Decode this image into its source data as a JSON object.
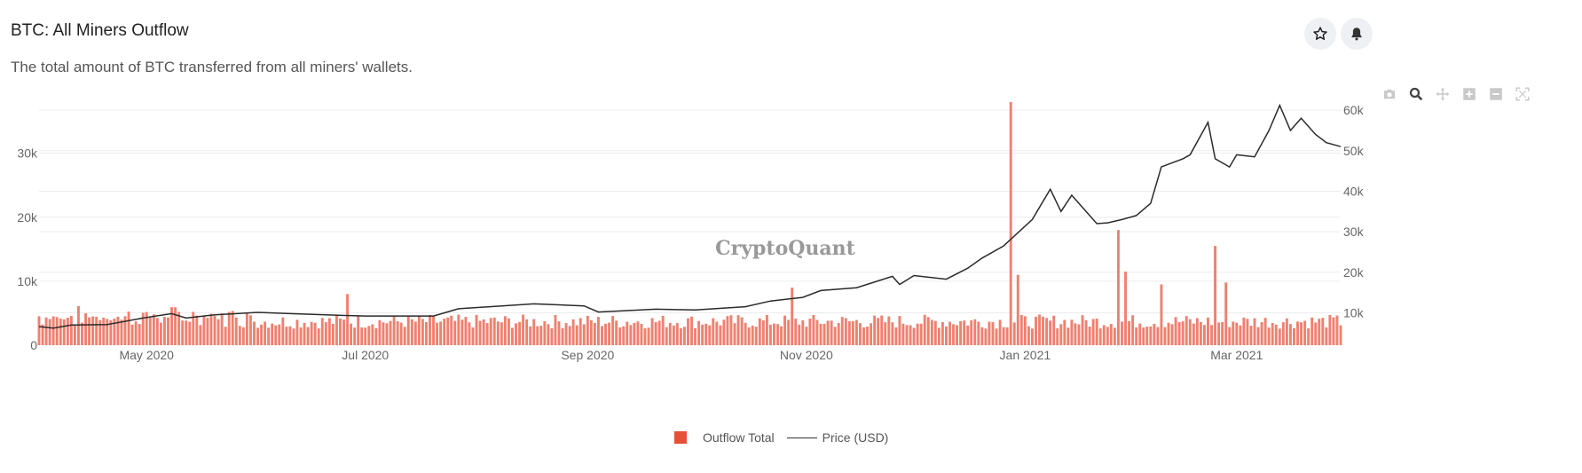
{
  "header": {
    "title": "BTC: All Miners Outflow",
    "subtitle": "The total amount of BTC transferred from all miners' wallets."
  },
  "actions": {
    "favorite_icon": "star-icon",
    "alert_icon": "bell-icon"
  },
  "modebar": [
    "camera-icon",
    "zoom-icon",
    "pan-icon",
    "zoom-in-icon",
    "zoom-out-icon",
    "reset-axes-icon"
  ],
  "watermark": "CryptoQuant",
  "colors": {
    "bar": "#f0806e",
    "bar_legend": "#e8503a",
    "line": "#2b2b2b",
    "grid": "#ececec",
    "axis_text": "#666666"
  },
  "chart_data": {
    "type": "bar+line",
    "x_start": "2020-04-01",
    "x_end": "2021-03-30",
    "x_tick_labels": [
      "May 2020",
      "Jul 2020",
      "Sep 2020",
      "Nov 2020",
      "Jan 2021",
      "Mar 2021"
    ],
    "x_tick_dates": [
      "2020-05-01",
      "2020-07-01",
      "2020-09-01",
      "2020-11-01",
      "2021-01-01",
      "2021-03-01"
    ],
    "y_left": {
      "range": [
        0,
        38000
      ],
      "ticks": [
        0,
        10000,
        20000,
        30000
      ],
      "tick_labels": [
        "0",
        "10k",
        "20k",
        "30k"
      ]
    },
    "y_right": {
      "range": [
        2000,
        62000
      ],
      "ticks": [
        10000,
        20000,
        30000,
        40000,
        50000,
        60000
      ],
      "tick_labels": [
        "10k",
        "20k",
        "30k",
        "40k",
        "50k",
        "60k"
      ]
    },
    "grid": true,
    "legend_position": "bottom-center",
    "series": [
      {
        "name": "Outflow Total",
        "type": "bar",
        "axis": "left",
        "baseline": 2600,
        "amplitude": 2200,
        "spikes": [
          {
            "date": "2020-06-26",
            "value": 8000
          },
          {
            "date": "2020-10-28",
            "value": 9000
          },
          {
            "date": "2020-12-28",
            "value": 38000
          },
          {
            "date": "2020-12-30",
            "value": 11000
          },
          {
            "date": "2021-01-27",
            "value": 18000
          },
          {
            "date": "2021-01-29",
            "value": 11500
          },
          {
            "date": "2021-02-08",
            "value": 9500
          },
          {
            "date": "2021-02-23",
            "value": 15500
          },
          {
            "date": "2021-02-26",
            "value": 9800
          }
        ]
      },
      {
        "name": "Price (USD)",
        "type": "line",
        "axis": "right",
        "points": [
          [
            "2020-04-01",
            6600
          ],
          [
            "2020-04-05",
            6200
          ],
          [
            "2020-04-10",
            7000
          ],
          [
            "2020-04-20",
            7100
          ],
          [
            "2020-04-30",
            8700
          ],
          [
            "2020-05-08",
            9800
          ],
          [
            "2020-05-12",
            8700
          ],
          [
            "2020-05-20",
            9500
          ],
          [
            "2020-06-01",
            10100
          ],
          [
            "2020-06-10",
            9800
          ],
          [
            "2020-06-20",
            9500
          ],
          [
            "2020-07-01",
            9200
          ],
          [
            "2020-07-20",
            9200
          ],
          [
            "2020-07-27",
            11000
          ],
          [
            "2020-08-10",
            11800
          ],
          [
            "2020-08-17",
            12200
          ],
          [
            "2020-08-31",
            11700
          ],
          [
            "2020-09-04",
            10200
          ],
          [
            "2020-09-20",
            10900
          ],
          [
            "2020-10-01",
            10700
          ],
          [
            "2020-10-15",
            11500
          ],
          [
            "2020-10-22",
            12900
          ],
          [
            "2020-10-31",
            13800
          ],
          [
            "2020-11-05",
            15500
          ],
          [
            "2020-11-15",
            16200
          ],
          [
            "2020-11-25",
            19000
          ],
          [
            "2020-11-27",
            17000
          ],
          [
            "2020-12-01",
            19200
          ],
          [
            "2020-12-10",
            18300
          ],
          [
            "2020-12-16",
            21000
          ],
          [
            "2020-12-20",
            23500
          ],
          [
            "2020-12-26",
            26500
          ],
          [
            "2021-01-03",
            33000
          ],
          [
            "2021-01-08",
            40500
          ],
          [
            "2021-01-11",
            35000
          ],
          [
            "2021-01-14",
            39000
          ],
          [
            "2021-01-21",
            32000
          ],
          [
            "2021-01-24",
            32200
          ],
          [
            "2021-01-28",
            33000
          ],
          [
            "2021-02-01",
            34000
          ],
          [
            "2021-02-05",
            37000
          ],
          [
            "2021-02-08",
            46000
          ],
          [
            "2021-02-14",
            48000
          ],
          [
            "2021-02-16",
            49000
          ],
          [
            "2021-02-21",
            57000
          ],
          [
            "2021-02-23",
            48000
          ],
          [
            "2021-02-27",
            46000
          ],
          [
            "2021-03-01",
            49000
          ],
          [
            "2021-03-06",
            48500
          ],
          [
            "2021-03-10",
            55000
          ],
          [
            "2021-03-13",
            61200
          ],
          [
            "2021-03-16",
            55000
          ],
          [
            "2021-03-19",
            58000
          ],
          [
            "2021-03-23",
            54000
          ],
          [
            "2021-03-26",
            52000
          ],
          [
            "2021-03-30",
            51000
          ]
        ]
      }
    ]
  }
}
